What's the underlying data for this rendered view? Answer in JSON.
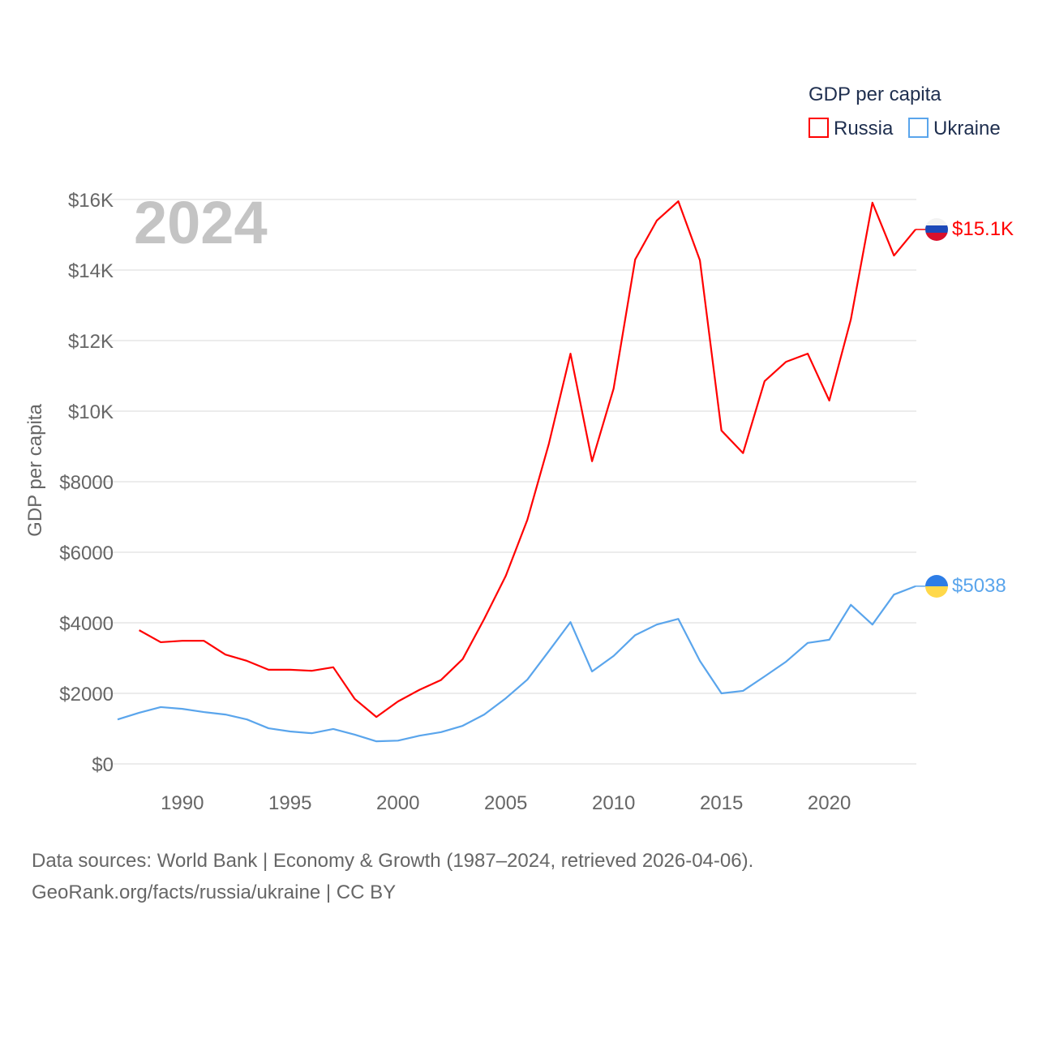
{
  "chart_data": {
    "type": "line",
    "title": "GDP per capita",
    "year_label": "2024",
    "ylabel": "GDP per capita",
    "xlabel": "",
    "xlim": [
      1987,
      2024
    ],
    "ylim": [
      0,
      16000
    ],
    "grid": true,
    "legend_placement": "top-right",
    "x_ticks": [
      1990,
      1995,
      2000,
      2005,
      2010,
      2015,
      2020
    ],
    "x_tick_labels": [
      "1990",
      "1995",
      "2000",
      "2005",
      "2010",
      "2015",
      "2020"
    ],
    "y_ticks": [
      0,
      2000,
      4000,
      6000,
      8000,
      10000,
      12000,
      14000,
      16000
    ],
    "y_tick_labels": [
      "$0",
      "$2000",
      "$4000",
      "$6000",
      "$8000",
      "$10K",
      "$12K",
      "$14K",
      "$16K"
    ],
    "series": [
      {
        "name": "Russia",
        "color": "#ff0000",
        "end_label": "$15.1K",
        "x": [
          1988,
          1989,
          1990,
          1991,
          1992,
          1993,
          1994,
          1995,
          1996,
          1997,
          1998,
          1999,
          2000,
          2001,
          2002,
          2003,
          2004,
          2005,
          2006,
          2007,
          2008,
          2009,
          2010,
          2011,
          2012,
          2013,
          2014,
          2015,
          2016,
          2017,
          2018,
          2019,
          2020,
          2021,
          2022,
          2023,
          2024
        ],
        "values": [
          3790,
          3450,
          3490,
          3490,
          3100,
          2920,
          2670,
          2670,
          2640,
          2740,
          1840,
          1330,
          1770,
          2100,
          2380,
          2970,
          4110,
          5330,
          6920,
          9080,
          11630,
          8580,
          10640,
          14300,
          15400,
          15950,
          14280,
          9450,
          8810,
          10850,
          11400,
          11630,
          10300,
          12600,
          15910,
          14410,
          15150
        ]
      },
      {
        "name": "Ukraine",
        "color": "#5aa5ec",
        "end_label": "$5038",
        "x": [
          1987,
          1988,
          1989,
          1990,
          1991,
          1992,
          1993,
          1994,
          1995,
          1996,
          1997,
          1998,
          1999,
          2000,
          2001,
          2002,
          2003,
          2004,
          2005,
          2006,
          2007,
          2008,
          2009,
          2010,
          2011,
          2012,
          2013,
          2014,
          2015,
          2016,
          2017,
          2018,
          2019,
          2020,
          2021,
          2022,
          2023,
          2024
        ],
        "values": [
          1260,
          1450,
          1610,
          1560,
          1470,
          1400,
          1260,
          1010,
          920,
          870,
          990,
          830,
          640,
          660,
          800,
          900,
          1080,
          1400,
          1860,
          2390,
          3200,
          4020,
          2620,
          3060,
          3650,
          3950,
          4110,
          2920,
          2000,
          2070,
          2480,
          2900,
          3430,
          3520,
          4510,
          3950,
          4800,
          5038
        ]
      }
    ]
  },
  "footer": {
    "line1": "Data sources: World Bank | Economy & Growth (1987–2024, retrieved 2026-04-06).",
    "line2": "GeoRank.org/facts/russia/ukraine | CC BY"
  }
}
